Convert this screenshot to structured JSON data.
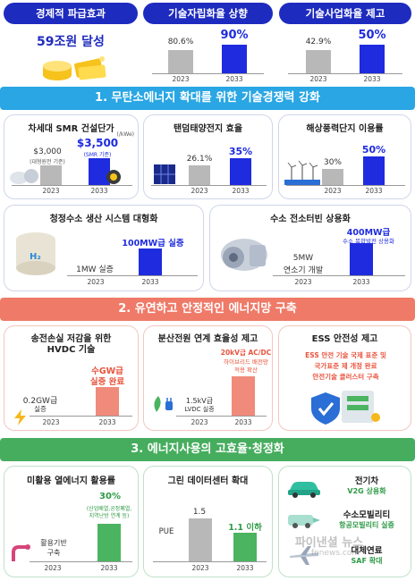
{
  "top": {
    "tabs": [
      "경제적 파급효과",
      "기술자립화율 상향",
      "기술사업화율 제고"
    ],
    "economic_value": "59조원 달성",
    "self_reliance": {
      "v2023": "80.6%",
      "v2033": "90%",
      "y1": "2023",
      "y2": "2033"
    },
    "commercial": {
      "v2023": "42.9%",
      "v2033": "50%",
      "y1": "2023",
      "y2": "2033"
    }
  },
  "section1": {
    "title": "1. 무탄소에너지 확대를 위한 기술경쟁력 강화",
    "smr": {
      "title": "차세대 SMR 건설단가",
      "unit": "(/kWe)",
      "v2023": "$3,000",
      "v2023_sub": "(대형원전 기준)",
      "v2033": "$3,500",
      "v2033_sub": "(SMR 기준)",
      "y1": "2023",
      "y2": "2033"
    },
    "tandem": {
      "title": "탠덤태양전지 효율",
      "v2023": "26.1%",
      "v2033": "35%",
      "y1": "2023",
      "y2": "2033"
    },
    "wind": {
      "title": "해상풍력단지 이용률",
      "v2023": "30%",
      "v2033": "50%",
      "y1": "2023",
      "y2": "2033"
    },
    "h2prod": {
      "title": "청정수소 생산 시스템 대형화",
      "v2023": "1MW 실증",
      "v2033": "100MW급 실증",
      "y1": "2023",
      "y2": "2033"
    },
    "turbine": {
      "title": "수소 전소터빈 상용화",
      "v2023": "5MW",
      "v2023_sub": "연소기 개발",
      "v2033": "400MW급",
      "v2033_sub": "수소 복합발전 상용화",
      "y1": "2023",
      "y2": "2033"
    }
  },
  "section2": {
    "title": "2. 유연하고 안정적인 에너지망 구축",
    "hvdc": {
      "title": "송전손실 저감을 위한",
      "title2": "HVDC 기술",
      "v2023": "0.2GW급",
      "v2023_sub": "실증",
      "v2033": "수GW급",
      "v2033_sub": "실증 완료",
      "y1": "2023",
      "y2": "2033"
    },
    "dist": {
      "title": "분산전원 연계 효율성 제고",
      "v2023": "1.5kV급",
      "v2023_sub": "LVDC 실증",
      "v2033": "20kV급 AC/DC",
      "v2033_sub": "하이브리드 배전망",
      "v2033_sub2": "적용 확산",
      "y1": "2023",
      "y2": "2033"
    },
    "ess": {
      "title": "ESS 안전성 제고",
      "l1": "ESS 안전 기술 국제 표준 및",
      "l2": "국가표준 제 개정 완료",
      "l3": "안전기술 클러스터 구축"
    }
  },
  "section3": {
    "title": "3. 에너지사용의 고효율·청정화",
    "heat": {
      "title": "미활용 열에너지 활용률",
      "v2023": "활용기반",
      "v2023_sub": "구축",
      "v2033": "30%",
      "v2033_sub": "(산업배열,공정폐열,",
      "v2033_sub2": "지역난방 연계 등)",
      "y1": "2023",
      "y2": "2033"
    },
    "dc": {
      "title": "그린 데이터센터 확대",
      "label": "PUE",
      "v2023": "1.5",
      "v2033": "1.1 이하",
      "y1": "2023",
      "y2": "2033"
    },
    "mobility": {
      "t1": "전기차",
      "s1": "V2G 상용화",
      "t2": "수소모빌리티",
      "s2": "항공모빌리티 실증",
      "t3": "대체연료",
      "s3": "SAF 확대"
    }
  },
  "watermark": {
    "line1": "파이낸셜 뉴스",
    "line2": "fnnews.com"
  }
}
